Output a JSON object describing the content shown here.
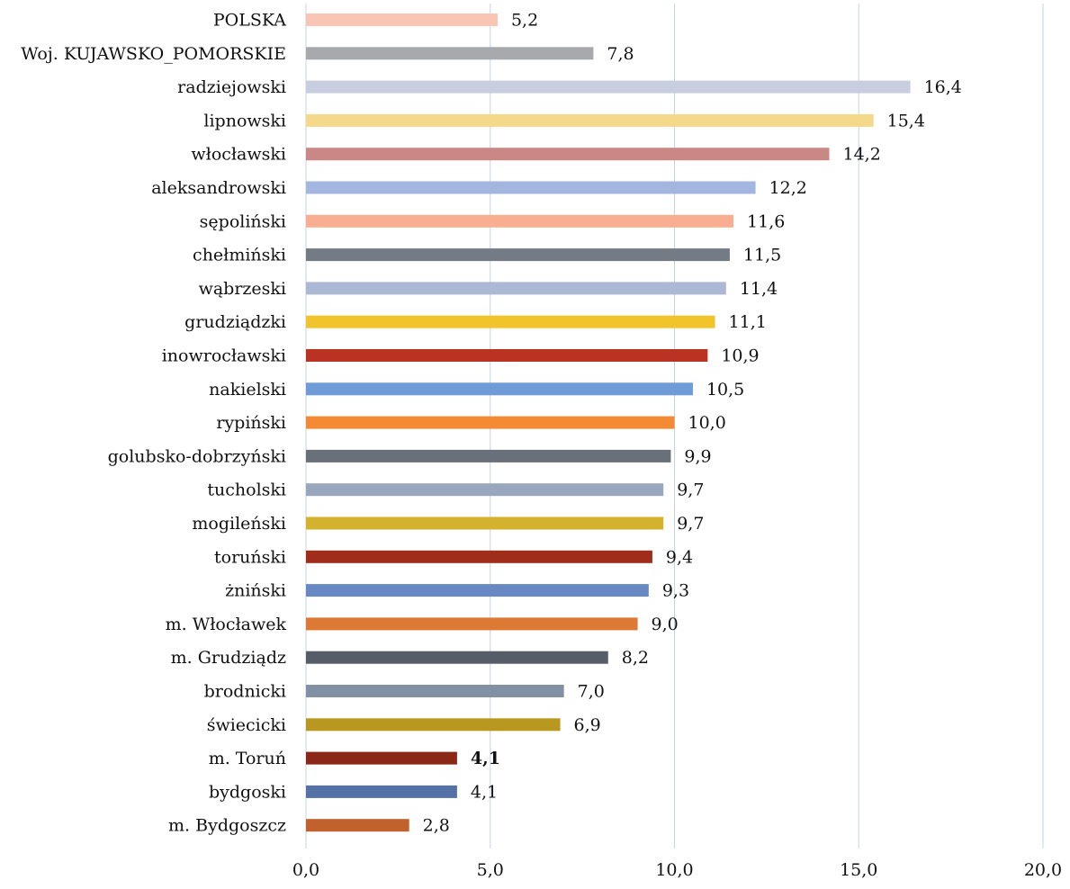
{
  "chart_data": {
    "type": "bar",
    "orientation": "horizontal",
    "title": "",
    "xlabel": "",
    "ylabel": "",
    "xlim": [
      0,
      20
    ],
    "x_ticks": [
      "0,0",
      "5,0",
      "10,0",
      "15,0",
      "20,0"
    ],
    "grid": "vertical",
    "legend": "none",
    "series": [
      {
        "categories": [
          "POLSKA",
          "Woj. KUJAWSKO_POMORSKIE",
          "radziejowski",
          "lipnowski",
          "włocławski",
          "aleksandrowski",
          "sępoliński",
          "chełmiński",
          "wąbrzeski",
          "grudziądzki",
          "inowrocławski",
          "nakielski",
          "rypiński",
          "golubsko-dobrzyński",
          "tucholski",
          "mogileński",
          "toruński",
          "żniński",
          "m. Włocławek",
          "m. Grudziądz",
          "brodnicki",
          "świecicki",
          "m. Toruń",
          "bydgoski",
          "m. Bydgoszcz"
        ],
        "values": [
          5.2,
          7.8,
          16.4,
          15.4,
          14.2,
          12.2,
          11.6,
          11.5,
          11.4,
          11.1,
          10.9,
          10.5,
          10.0,
          9.9,
          9.7,
          9.7,
          9.4,
          9.3,
          9.0,
          8.2,
          7.0,
          6.9,
          4.1,
          4.1,
          2.8
        ],
        "value_labels": [
          "5,2",
          "7,8",
          "16,4",
          "15,4",
          "14,2",
          "12,2",
          "11,6",
          "11,5",
          "11,4",
          "11,1",
          "10,9",
          "10,5",
          "10,0",
          "9,9",
          "9,7",
          "9,7",
          "9,4",
          "9,3",
          "9,0",
          "8,2",
          "7,0",
          "6,9",
          "4,1",
          "4,1",
          "2,8"
        ],
        "bold_labels": [
          "m. Toruń"
        ],
        "colors": [
          "#F9C5B5",
          "#A8A9AD",
          "#C6CEDF",
          "#F5D98A",
          "#C98885",
          "#A2B6E0",
          "#F9AE91",
          "#747B84",
          "#ADB8D4",
          "#F2C42C",
          "#B93222",
          "#6F9BD9",
          "#F58A34",
          "#697079",
          "#98A6BE",
          "#D4B22D",
          "#A02D1A",
          "#6788C2",
          "#DE7934",
          "#565D68",
          "#8190A2",
          "#B8981F",
          "#8A2717",
          "#5472A6",
          "#C1612B"
        ]
      }
    ]
  }
}
